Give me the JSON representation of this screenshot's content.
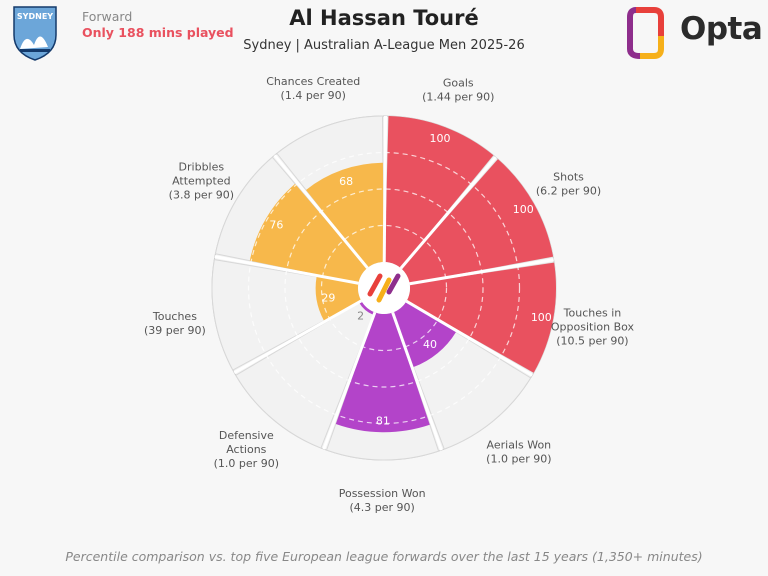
{
  "header": {
    "position": "Forward",
    "minutes_note": "Only 188 mins played",
    "player_name": "Al Hassan Touré",
    "subtitle": "Sydney | Australian A-League Men 2025-26"
  },
  "club_badge": {
    "text": "SYDNEY",
    "colors": {
      "primary": "#6ca6d9",
      "dark": "#143a6b"
    }
  },
  "brand": {
    "name": "Opta",
    "colors": [
      "#e8403b",
      "#8e2e8c",
      "#f6b01a"
    ]
  },
  "footer": "Percentile comparison vs. top five European league forwards over the last 15 years (1,350+ minutes)",
  "colors": {
    "attacking": "#e9515f",
    "possession": "#f7b84b",
    "defending": "#b344c9",
    "empty": "#f2f2f2",
    "outline": "#c8c8c8"
  },
  "chart_data": {
    "type": "radial-bar",
    "scale": [
      0,
      100
    ],
    "grid": true,
    "categories": [
      {
        "label_lines": [
          "Goals",
          "(1.44 per 90)"
        ],
        "value": 100,
        "group": "attacking"
      },
      {
        "label_lines": [
          "Shots",
          "(6.2 per 90)"
        ],
        "value": 100,
        "group": "attacking"
      },
      {
        "label_lines": [
          "Touches in",
          "Opposition Box",
          "(10.5 per 90)"
        ],
        "value": 100,
        "group": "attacking"
      },
      {
        "label_lines": [
          "Aerials Won",
          "(1.0 per 90)"
        ],
        "value": 40,
        "group": "defending"
      },
      {
        "label_lines": [
          "Possession Won",
          "(4.3 per 90)"
        ],
        "value": 81,
        "group": "defending"
      },
      {
        "label_lines": [
          "Defensive",
          "Actions",
          "(1.0 per 90)"
        ],
        "value": 2,
        "group": "defending"
      },
      {
        "label_lines": [
          "Touches",
          "(39 per 90)"
        ],
        "value": 29,
        "group": "possession"
      },
      {
        "label_lines": [
          "Dribbles",
          "Attempted",
          "(3.8 per 90)"
        ],
        "value": 76,
        "group": "possession"
      },
      {
        "label_lines": [
          "Chances Created",
          "(1.4 per 90)"
        ],
        "value": 68,
        "group": "possession"
      }
    ]
  }
}
